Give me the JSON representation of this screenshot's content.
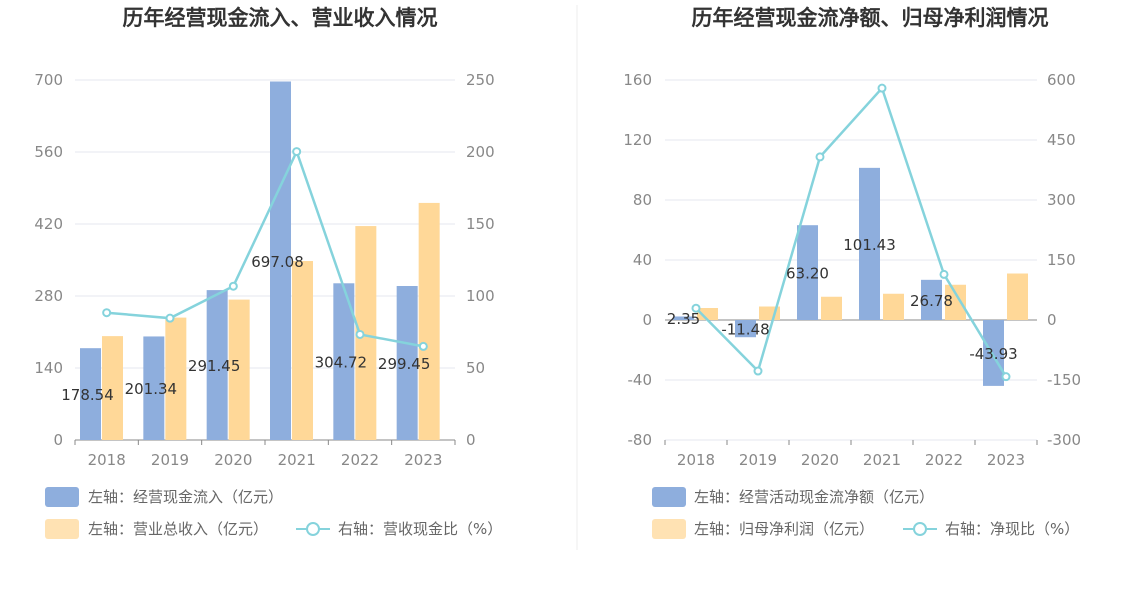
{
  "colors": {
    "blue": "#8eaedd",
    "orange": "#ffd898",
    "line": "#85d3dc",
    "grid": "#e4e7ef",
    "axis": "#888888",
    "divider": "#eeeeee"
  },
  "chart_data": [
    {
      "type": "bar",
      "title": "历年经营现金流入、营业收入情况",
      "categories": [
        "2018",
        "2019",
        "2020",
        "2021",
        "2022",
        "2023"
      ],
      "left_axis": {
        "ticks": [
          "700",
          "560",
          "420",
          "280",
          "140",
          "0"
        ],
        "ylim": [
          0,
          700
        ]
      },
      "right_axis": {
        "ticks": [
          "250",
          "200",
          "150",
          "100",
          "50",
          "0"
        ],
        "ylim": [
          0,
          250
        ]
      },
      "series": [
        {
          "name": "左轴：经营现金流入（亿元）",
          "kind": "bar",
          "axis": "left",
          "color": "#8eaedd",
          "values": [
            178.54,
            201.34,
            291.45,
            697.08,
            304.72,
            299.45
          ],
          "labels": [
            "178.54",
            "201.34",
            "291.45",
            "697.08",
            "304.72",
            "299.45"
          ]
        },
        {
          "name": "左轴：营业总收入（亿元）",
          "kind": "bar",
          "axis": "left",
          "color": "#ffd898",
          "values": [
            202,
            238,
            273,
            348,
            416,
            461
          ]
        },
        {
          "name": "右轴：营收现金比（%）",
          "kind": "line",
          "axis": "right",
          "color": "#85d3dc",
          "values": [
            88.4,
            84.6,
            106.8,
            200.3,
            73.3,
            65.0
          ]
        }
      ]
    },
    {
      "type": "bar",
      "title": "历年经营现金流净额、归母净利润情况",
      "categories": [
        "2018",
        "2019",
        "2020",
        "2021",
        "2022",
        "2023"
      ],
      "left_axis": {
        "ticks": [
          "160",
          "120",
          "80",
          "40",
          "0",
          "-40",
          "-80"
        ],
        "ylim": [
          -80,
          160
        ]
      },
      "right_axis": {
        "ticks": [
          "600",
          "450",
          "300",
          "150",
          "0",
          "-150",
          "-300"
        ],
        "ylim": [
          -300,
          600
        ]
      },
      "series": [
        {
          "name": "左轴：经营活动现金流净额（亿元）",
          "kind": "bar",
          "axis": "left",
          "color": "#8eaedd",
          "values": [
            2.35,
            -11.48,
            63.2,
            101.43,
            26.78,
            -43.93
          ],
          "labels": [
            "2.35",
            "-11.48",
            "63.20",
            "101.43",
            "26.78",
            "-43.93"
          ]
        },
        {
          "name": "左轴：归母净利润（亿元）",
          "kind": "bar",
          "axis": "left",
          "color": "#ffd898",
          "values": [
            8,
            9,
            15.5,
            17.5,
            23.5,
            31
          ]
        },
        {
          "name": "右轴：净现比（%）",
          "kind": "line",
          "axis": "right",
          "color": "#85d3dc",
          "values": [
            29.4,
            -127.6,
            407.7,
            579.6,
            114.0,
            -141.7
          ]
        }
      ]
    }
  ]
}
